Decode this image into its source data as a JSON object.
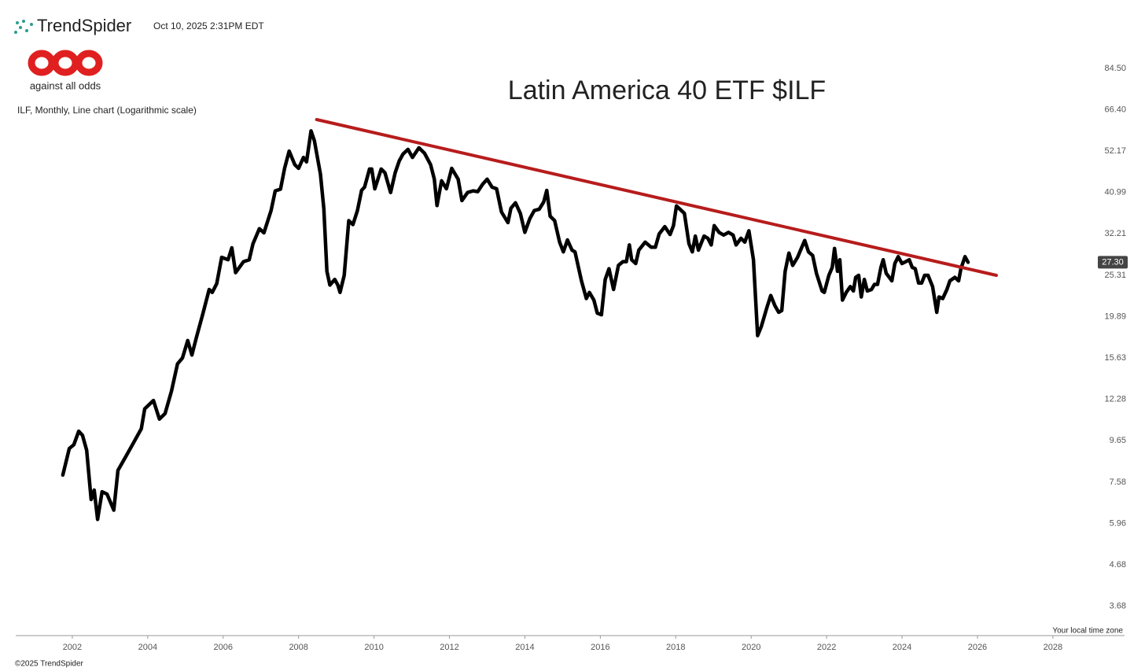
{
  "header": {
    "brand": "TrendSpider",
    "timestamp": "Oct 10, 2025 2:31PM EDT",
    "logo_text": "against all odds"
  },
  "footer": {
    "timezone_note": "Your local time zone",
    "copyright": "©2025 TrendSpider"
  },
  "chart_data": {
    "type": "line",
    "title": "Latin America 40 ETF $ILF",
    "subtitle": "ILF, Monthly, Line chart (Logarithmic scale)",
    "log_scale": true,
    "grid": false,
    "xlim": [
      2000.5,
      2029.9
    ],
    "xticks": [
      2002,
      2004,
      2006,
      2008,
      2010,
      2012,
      2014,
      2016,
      2018,
      2020,
      2022,
      2024,
      2026,
      2028
    ],
    "ylim": [
      3.1,
      95.6
    ],
    "yticks": [
      {
        "value": 84.5,
        "label": "84.50"
      },
      {
        "value": 66.4,
        "label": "66.40"
      },
      52.17,
      40.99,
      32.21,
      25.31,
      19.89,
      15.63,
      12.28,
      9.65,
      7.58,
      5.96,
      4.68,
      3.68
    ],
    "last_value": {
      "value": 27.3,
      "label": "27.30"
    },
    "series": [
      {
        "color": "#000000",
        "x": [
          2001.75,
          2001.92,
          2002.04,
          2002.17,
          2002.27,
          2002.38,
          2002.5,
          2002.58,
          2002.67,
          2002.79,
          2002.92,
          2003.1,
          2003.21,
          2003.42,
          2003.63,
          2003.83,
          2003.92,
          2004.15,
          2004.31,
          2004.46,
          2004.63,
          2004.79,
          2004.92,
          2005.06,
          2005.17,
          2005.29,
          2005.46,
          2005.63,
          2005.71,
          2005.83,
          2005.96,
          2006.13,
          2006.23,
          2006.33,
          2006.54,
          2006.69,
          2006.79,
          2006.96,
          2007.08,
          2007.27,
          2007.38,
          2007.52,
          2007.63,
          2007.75,
          2007.9,
          2008.0,
          2008.13,
          2008.21,
          2008.33,
          2008.42,
          2008.58,
          2008.67,
          2008.75,
          2008.83,
          2008.96,
          2009.04,
          2009.1,
          2009.21,
          2009.33,
          2009.44,
          2009.56,
          2009.67,
          2009.75,
          2009.88,
          2009.94,
          2010.02,
          2010.19,
          2010.29,
          2010.44,
          2010.56,
          2010.67,
          2010.77,
          2010.9,
          2011.02,
          2011.19,
          2011.34,
          2011.5,
          2011.6,
          2011.67,
          2011.79,
          2011.92,
          2012.06,
          2012.23,
          2012.33,
          2012.48,
          2012.63,
          2012.75,
          2012.88,
          2013.0,
          2013.13,
          2013.25,
          2013.38,
          2013.55,
          2013.63,
          2013.75,
          2013.88,
          2014.0,
          2014.13,
          2014.25,
          2014.38,
          2014.5,
          2014.58,
          2014.67,
          2014.79,
          2014.92,
          2015.02,
          2015.13,
          2015.25,
          2015.33,
          2015.5,
          2015.63,
          2015.71,
          2015.83,
          2015.92,
          2016.03,
          2016.13,
          2016.23,
          2016.35,
          2016.48,
          2016.6,
          2016.69,
          2016.77,
          2016.83,
          2016.94,
          2017.02,
          2017.19,
          2017.35,
          2017.46,
          2017.56,
          2017.71,
          2017.85,
          2017.94,
          2018.02,
          2018.15,
          2018.23,
          2018.35,
          2018.44,
          2018.52,
          2018.6,
          2018.75,
          2018.85,
          2018.94,
          2019.02,
          2019.15,
          2019.27,
          2019.4,
          2019.52,
          2019.6,
          2019.73,
          2019.83,
          2019.94,
          2020.06,
          2020.17,
          2020.27,
          2020.42,
          2020.52,
          2020.63,
          2020.73,
          2020.81,
          2020.9,
          2021.0,
          2021.1,
          2021.23,
          2021.31,
          2021.42,
          2021.52,
          2021.63,
          2021.73,
          2021.88,
          2021.94,
          2022.06,
          2022.15,
          2022.21,
          2022.29,
          2022.35,
          2022.42,
          2022.52,
          2022.63,
          2022.71,
          2022.77,
          2022.85,
          2022.92,
          2023.0,
          2023.08,
          2023.19,
          2023.27,
          2023.35,
          2023.44,
          2023.5,
          2023.58,
          2023.73,
          2023.81,
          2023.9,
          2024.0,
          2024.1,
          2024.19,
          2024.27,
          2024.35,
          2024.44,
          2024.52,
          2024.6,
          2024.69,
          2024.81,
          2024.92,
          2024.98,
          2025.08,
          2025.19,
          2025.27,
          2025.4,
          2025.5,
          2025.56,
          2025.67,
          2025.75
        ],
        "values": [
          7.9,
          9.22,
          9.43,
          10.2,
          9.96,
          9.13,
          6.85,
          7.24,
          6.1,
          7.17,
          7.07,
          6.44,
          8.12,
          8.8,
          9.56,
          10.35,
          11.62,
          12.2,
          10.95,
          11.3,
          12.9,
          15.1,
          15.63,
          17.3,
          15.9,
          17.6,
          20.2,
          23.3,
          22.9,
          24.1,
          28.1,
          27.7,
          29.7,
          25.7,
          27.4,
          27.7,
          30.4,
          33.2,
          32.4,
          36.9,
          41.4,
          41.8,
          47.2,
          52.17,
          48.2,
          47.2,
          50.3,
          49.0,
          58.7,
          55.4,
          45.6,
          37.3,
          25.9,
          23.9,
          24.7,
          23.9,
          22.9,
          25.3,
          34.8,
          34.0,
          36.9,
          41.5,
          42.3,
          47.0,
          47.0,
          41.9,
          47.0,
          46.0,
          41.0,
          46.0,
          49.3,
          51.3,
          52.7,
          50.3,
          53.2,
          51.5,
          48.2,
          44.3,
          38.0,
          43.9,
          41.9,
          47.2,
          44.3,
          39.1,
          41.0,
          41.4,
          41.2,
          43.0,
          44.3,
          42.3,
          41.9,
          36.6,
          34.4,
          37.4,
          38.6,
          36.3,
          32.5,
          35.2,
          36.9,
          37.2,
          38.8,
          41.5,
          35.7,
          34.8,
          30.7,
          29.0,
          31.1,
          29.3,
          29.0,
          24.5,
          22.1,
          22.9,
          21.9,
          20.3,
          20.1,
          24.7,
          26.3,
          23.3,
          26.8,
          27.4,
          27.4,
          30.2,
          27.7,
          27.1,
          29.3,
          30.7,
          29.8,
          29.8,
          32.2,
          33.6,
          32.1,
          33.8,
          37.9,
          36.9,
          36.3,
          30.4,
          29.0,
          31.8,
          29.3,
          31.8,
          31.4,
          30.2,
          33.8,
          32.5,
          32.0,
          32.5,
          32.0,
          30.2,
          31.4,
          30.7,
          32.8,
          27.7,
          17.8,
          18.8,
          21.0,
          22.5,
          21.2,
          20.4,
          20.6,
          25.9,
          28.8,
          26.8,
          28.1,
          29.3,
          31.0,
          29.0,
          28.4,
          25.6,
          23.1,
          22.9,
          25.3,
          26.5,
          29.6,
          25.9,
          27.7,
          21.9,
          22.9,
          23.7,
          23.1,
          25.0,
          25.3,
          22.3,
          24.7,
          23.1,
          23.3,
          24.0,
          24.0,
          26.5,
          27.7,
          25.6,
          24.5,
          27.1,
          28.2,
          27.1,
          27.4,
          27.7,
          26.5,
          26.3,
          24.2,
          24.2,
          25.3,
          25.3,
          23.7,
          20.4,
          22.3,
          22.1,
          23.3,
          24.5,
          25.0,
          24.5,
          26.3,
          28.2,
          27.3
        ]
      },
      {
        "color": "#b71c1c",
        "x": [
          2008.48,
          2026.5
        ],
        "values": [
          62.7,
          25.3
        ]
      }
    ]
  }
}
